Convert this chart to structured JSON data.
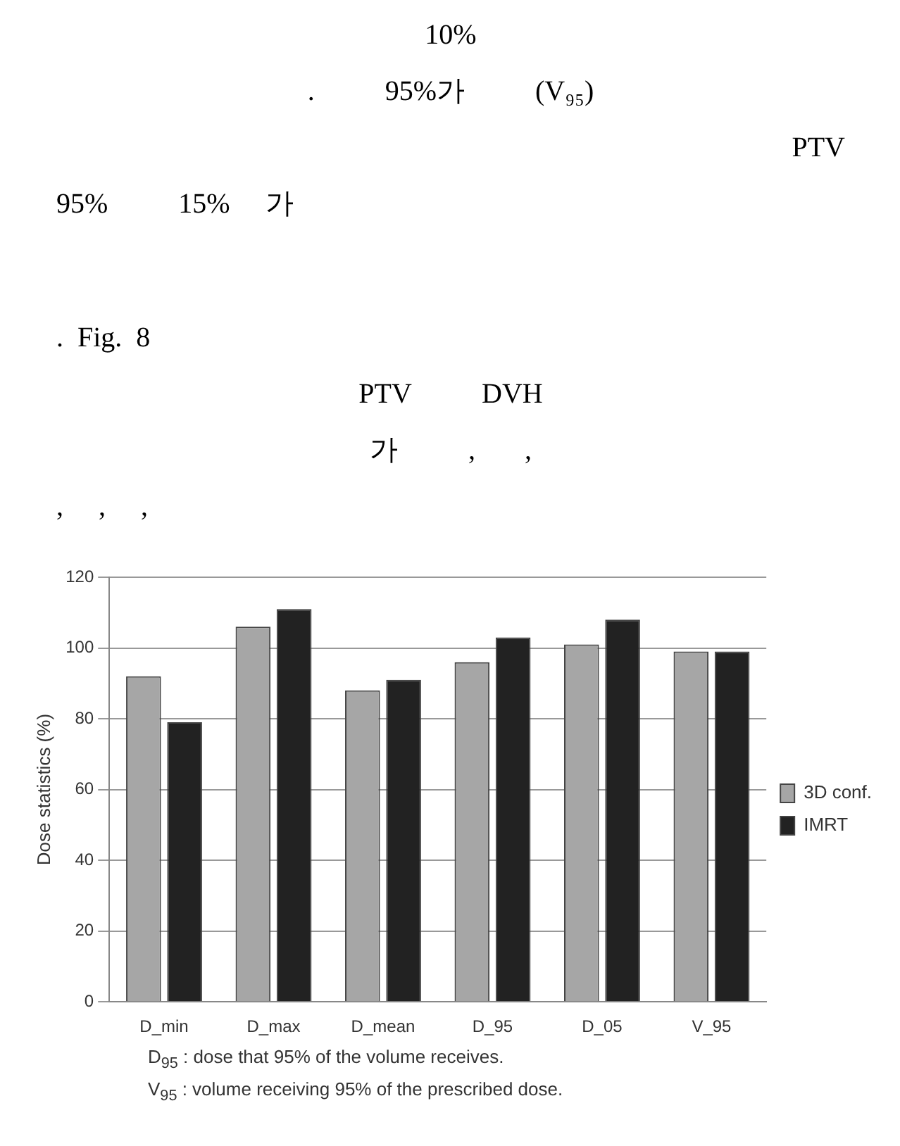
{
  "chart_data": {
    "type": "bar",
    "ylabel": "Dose statistics (%)",
    "categories": [
      "D_min",
      "D_max",
      "D_mean",
      "D_95",
      "D_05",
      "V_95"
    ],
    "series": [
      {
        "name": "3D conf.",
        "color": "#a6a6a6",
        "values": [
          92,
          106,
          88,
          96,
          101,
          99
        ]
      },
      {
        "name": "IMRT",
        "color": "#222222",
        "values": [
          79,
          111,
          91,
          103,
          108,
          99
        ]
      }
    ],
    "ylim": [
      0,
      120
    ],
    "yticks": [
      0,
      20,
      40,
      60,
      80,
      100,
      120
    ],
    "grid": "y",
    "legend": "right",
    "annotations": [
      "10%",
      ".          95%가          (V₉₅)",
      "PTV",
      "95%          15%     가",
      ".  Fig.  8",
      "PTV          DVH",
      "가          ,       ,",
      ",     ,     ,",
      "D$_{95}$ : dose that 95% of the volume receives.",
      "V$_{95}$ : volume receiving 95% of the prescribed dose."
    ]
  }
}
